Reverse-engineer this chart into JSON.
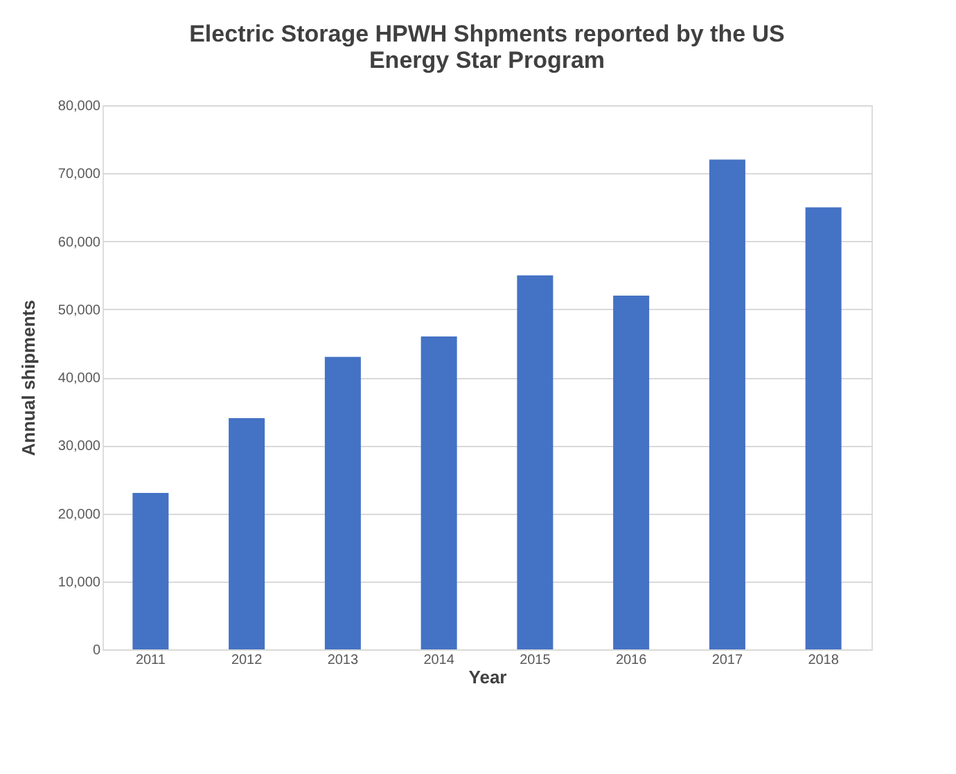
{
  "chart_data": {
    "type": "bar",
    "title": [
      "Electric Storage HPWH Shpments reported by the US",
      "Energy Star Program"
    ],
    "xlabel": "Year",
    "ylabel": "Annual shipments",
    "categories": [
      "2011",
      "2012",
      "2013",
      "2014",
      "2015",
      "2016",
      "2017",
      "2018"
    ],
    "values": [
      23000,
      34000,
      43000,
      46000,
      55000,
      52000,
      72000,
      65000
    ],
    "color": "#4472c4",
    "ylim": [
      0,
      80000
    ],
    "yticks": [
      {
        "value": 0,
        "label": "0"
      },
      {
        "value": 10000,
        "label": "10,000"
      },
      {
        "value": 20000,
        "label": "20,000"
      },
      {
        "value": 30000,
        "label": "30,000"
      },
      {
        "value": 40000,
        "label": "40,000"
      },
      {
        "value": 50000,
        "label": "50,000"
      },
      {
        "value": 60000,
        "label": "60,000"
      },
      {
        "value": 70000,
        "label": "70,000"
      },
      {
        "value": 80000,
        "label": "80,000"
      }
    ],
    "grid": "y"
  }
}
